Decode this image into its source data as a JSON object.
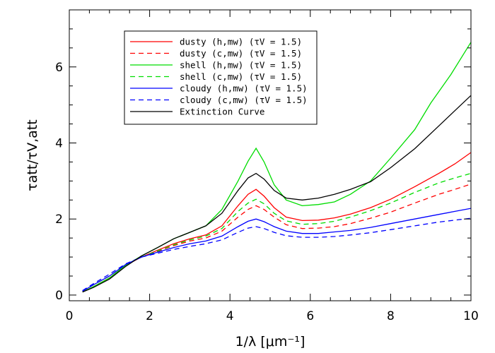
{
  "chart_data": {
    "type": "line",
    "xlabel": "1/λ [μm⁻¹]",
    "ylabel": "τatt/τV,att",
    "xlim": [
      0,
      10
    ],
    "ylim": [
      -0.15,
      7.5
    ],
    "x_ticks": [
      0,
      2,
      4,
      6,
      8,
      10
    ],
    "y_ticks": [
      0,
      2,
      4,
      6
    ],
    "legend_position": "top-left",
    "series": [
      {
        "name": "dusty (h,mw) (τV = 1.5)",
        "color": "#ff0000",
        "dash": "solid",
        "x": [
          0.33,
          0.6,
          1.0,
          1.4,
          1.8,
          2.2,
          2.6,
          3.0,
          3.4,
          3.8,
          4.2,
          4.45,
          4.65,
          4.85,
          5.1,
          5.4,
          5.8,
          6.2,
          6.6,
          7.0,
          7.5,
          8.0,
          8.6,
          9.2,
          9.6,
          10.0
        ],
        "y": [
          0.08,
          0.22,
          0.45,
          0.78,
          1.0,
          1.18,
          1.35,
          1.48,
          1.58,
          1.82,
          2.35,
          2.65,
          2.78,
          2.6,
          2.3,
          2.05,
          1.96,
          1.97,
          2.03,
          2.13,
          2.3,
          2.52,
          2.85,
          3.2,
          3.45,
          3.75
        ]
      },
      {
        "name": "dusty (c,mw) (τV = 1.5)",
        "color": "#ff0000",
        "dash": "dashed",
        "x": [
          0.33,
          0.6,
          1.0,
          1.4,
          1.8,
          2.2,
          2.6,
          3.0,
          3.4,
          3.8,
          4.2,
          4.45,
          4.65,
          4.85,
          5.1,
          5.4,
          5.8,
          6.2,
          6.6,
          7.0,
          7.5,
          8.0,
          8.6,
          9.2,
          9.6,
          10.0
        ],
        "y": [
          0.1,
          0.27,
          0.5,
          0.8,
          1.0,
          1.15,
          1.3,
          1.42,
          1.5,
          1.68,
          2.05,
          2.25,
          2.35,
          2.25,
          2.05,
          1.85,
          1.75,
          1.76,
          1.8,
          1.88,
          2.02,
          2.18,
          2.42,
          2.65,
          2.78,
          2.92
        ]
      },
      {
        "name": "shell (h,mw) (τV = 1.5)",
        "color": "#00dd00",
        "dash": "solid",
        "x": [
          0.33,
          0.6,
          1.0,
          1.4,
          1.8,
          2.2,
          2.6,
          3.0,
          3.4,
          3.8,
          4.2,
          4.45,
          4.65,
          4.85,
          5.1,
          5.4,
          5.8,
          6.2,
          6.6,
          7.0,
          7.5,
          8.0,
          8.6,
          9.0,
          9.5,
          10.0
        ],
        "y": [
          0.08,
          0.22,
          0.45,
          0.78,
          1.03,
          1.25,
          1.48,
          1.65,
          1.82,
          2.25,
          3.0,
          3.52,
          3.86,
          3.5,
          2.9,
          2.5,
          2.35,
          2.38,
          2.45,
          2.65,
          3.0,
          3.6,
          4.35,
          5.05,
          5.8,
          6.65
        ]
      },
      {
        "name": "shell (c,mw) (τV = 1.5)",
        "color": "#00dd00",
        "dash": "dashed",
        "x": [
          0.33,
          0.6,
          1.0,
          1.4,
          1.8,
          2.2,
          2.6,
          3.0,
          3.4,
          3.8,
          4.2,
          4.45,
          4.65,
          4.85,
          5.1,
          5.4,
          5.8,
          6.2,
          6.6,
          7.0,
          7.5,
          8.0,
          8.6,
          9.2,
          9.6,
          10.0
        ],
        "y": [
          0.1,
          0.27,
          0.5,
          0.8,
          1.0,
          1.16,
          1.32,
          1.45,
          1.55,
          1.75,
          2.2,
          2.42,
          2.52,
          2.4,
          2.15,
          1.95,
          1.86,
          1.88,
          1.94,
          2.05,
          2.22,
          2.42,
          2.7,
          2.95,
          3.08,
          3.2
        ]
      },
      {
        "name": "cloudy (h,mw) (τV = 1.5)",
        "color": "#0000ff",
        "dash": "solid",
        "x": [
          0.33,
          0.6,
          1.0,
          1.4,
          1.8,
          2.2,
          2.6,
          3.0,
          3.4,
          3.8,
          4.2,
          4.45,
          4.65,
          4.85,
          5.1,
          5.4,
          5.8,
          6.2,
          6.6,
          7.0,
          7.5,
          8.0,
          8.6,
          9.2,
          9.6,
          10.0
        ],
        "y": [
          0.1,
          0.27,
          0.5,
          0.8,
          1.0,
          1.13,
          1.25,
          1.35,
          1.42,
          1.55,
          1.8,
          1.94,
          2.0,
          1.93,
          1.8,
          1.68,
          1.62,
          1.62,
          1.66,
          1.7,
          1.78,
          1.88,
          2.0,
          2.12,
          2.2,
          2.28
        ]
      },
      {
        "name": "cloudy (c,mw) (τV = 1.5)",
        "color": "#0000ff",
        "dash": "dashed",
        "x": [
          0.33,
          0.6,
          1.0,
          1.4,
          1.8,
          2.2,
          2.6,
          3.0,
          3.4,
          3.8,
          4.2,
          4.45,
          4.65,
          4.85,
          5.1,
          5.4,
          5.8,
          6.2,
          6.6,
          7.0,
          7.5,
          8.0,
          8.6,
          9.2,
          9.6,
          10.0
        ],
        "y": [
          0.12,
          0.3,
          0.55,
          0.82,
          1.0,
          1.1,
          1.2,
          1.28,
          1.35,
          1.45,
          1.65,
          1.76,
          1.8,
          1.75,
          1.65,
          1.56,
          1.52,
          1.52,
          1.54,
          1.58,
          1.64,
          1.72,
          1.82,
          1.92,
          1.97,
          2.02
        ]
      },
      {
        "name": "Extinction Curve",
        "color": "#000000",
        "dash": "solid",
        "x": [
          0.33,
          0.6,
          1.0,
          1.4,
          1.8,
          2.2,
          2.6,
          3.0,
          3.4,
          3.8,
          4.2,
          4.45,
          4.65,
          4.85,
          5.1,
          5.4,
          5.8,
          6.2,
          6.6,
          7.0,
          7.5,
          8.0,
          8.6,
          9.2,
          9.6,
          10.0
        ],
        "y": [
          0.08,
          0.2,
          0.42,
          0.75,
          1.03,
          1.25,
          1.48,
          1.65,
          1.82,
          2.15,
          2.75,
          3.08,
          3.2,
          3.05,
          2.75,
          2.55,
          2.5,
          2.55,
          2.65,
          2.78,
          2.98,
          3.35,
          3.85,
          4.45,
          4.85,
          5.25
        ]
      }
    ]
  }
}
